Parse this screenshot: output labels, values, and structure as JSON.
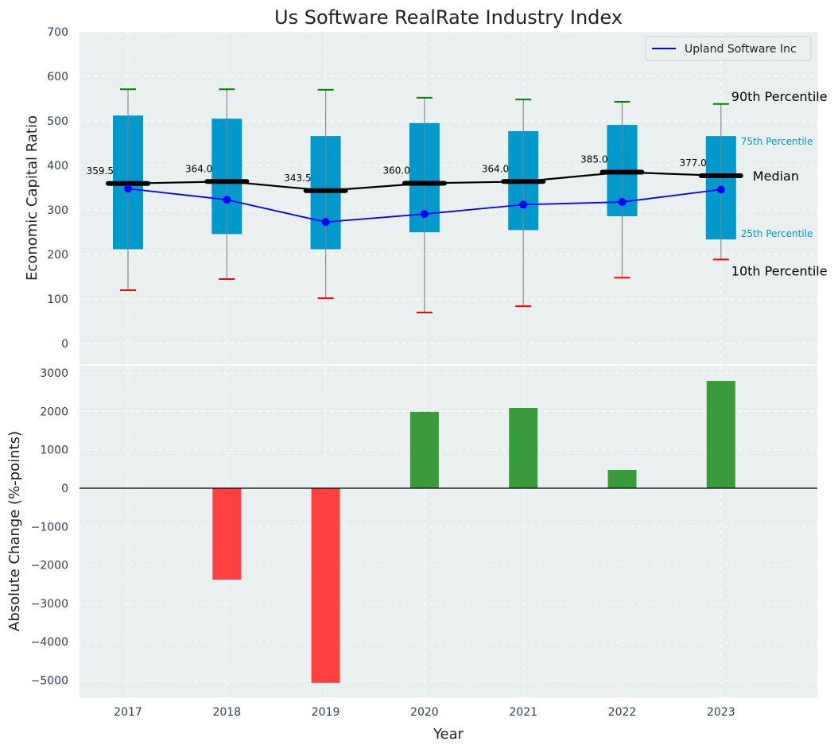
{
  "chart_data": [
    {
      "type": "box",
      "title": "Us Software RealRate Industry Index",
      "xlabel": "",
      "ylabel": "Economic Capital Ratio",
      "ylim": [
        -46,
        700
      ],
      "yticks": [
        0,
        100,
        200,
        300,
        400,
        500,
        600,
        700
      ],
      "categories": [
        "2017",
        "2018",
        "2019",
        "2020",
        "2021",
        "2022",
        "2023"
      ],
      "grid": true,
      "legend_position": "top-right",
      "percentiles": {
        "p10": [
          120,
          145,
          102,
          70,
          84,
          148,
          189
        ],
        "p25": [
          212,
          246,
          212,
          250,
          255,
          286,
          234
        ],
        "median": [
          359.5,
          364.0,
          343.5,
          360.0,
          364.0,
          385.0,
          377.0
        ],
        "p75": [
          512,
          505,
          466,
          495,
          477,
          491,
          466
        ],
        "p90": [
          571,
          571,
          570,
          552,
          548,
          543,
          538
        ]
      },
      "median_labels": [
        "359.5",
        "364.0",
        "343.5",
        "360.0",
        "364.0",
        "385.0",
        "377.0"
      ],
      "series": [
        {
          "name": "Upland Software Inc",
          "values": [
            348,
            323,
            273,
            291,
            312,
            318,
            346
          ],
          "color": "#0000ff"
        }
      ],
      "annotations": {
        "p90": "90th Percentile",
        "p75": "75th Percentile",
        "median": "Median",
        "p25": "25th Percentile",
        "p10": "10th Percentile"
      },
      "colors": {
        "box": "#0099cc",
        "median": "#000000",
        "p90_cap": "#008000",
        "p10_cap": "#ff0000",
        "whisker": "#808080",
        "annotation_small": "#0099cc",
        "background": "#eaeff0"
      }
    },
    {
      "type": "bar",
      "title": "",
      "xlabel": "Year",
      "ylabel": "Absolute Change (%-points)",
      "ylim": [
        -5445,
        3188
      ],
      "yticks": [
        -5000,
        -4000,
        -3000,
        -2000,
        -1000,
        0,
        1000,
        2000,
        3000
      ],
      "ytick_labels": [
        "−5000",
        "−4000",
        "−3000",
        "−2000",
        "−1000",
        "0",
        "1000",
        "2000",
        "3000"
      ],
      "categories": [
        "2017",
        "2018",
        "2019",
        "2020",
        "2021",
        "2022",
        "2023"
      ],
      "values": [
        0,
        -2380,
        -5070,
        1990,
        2090,
        476,
        2795
      ],
      "grid": true,
      "colors": {
        "positive": "#3a9b3c",
        "negative": "#ff4040",
        "zero_line": "#000000",
        "background": "#eaeff0"
      }
    }
  ]
}
